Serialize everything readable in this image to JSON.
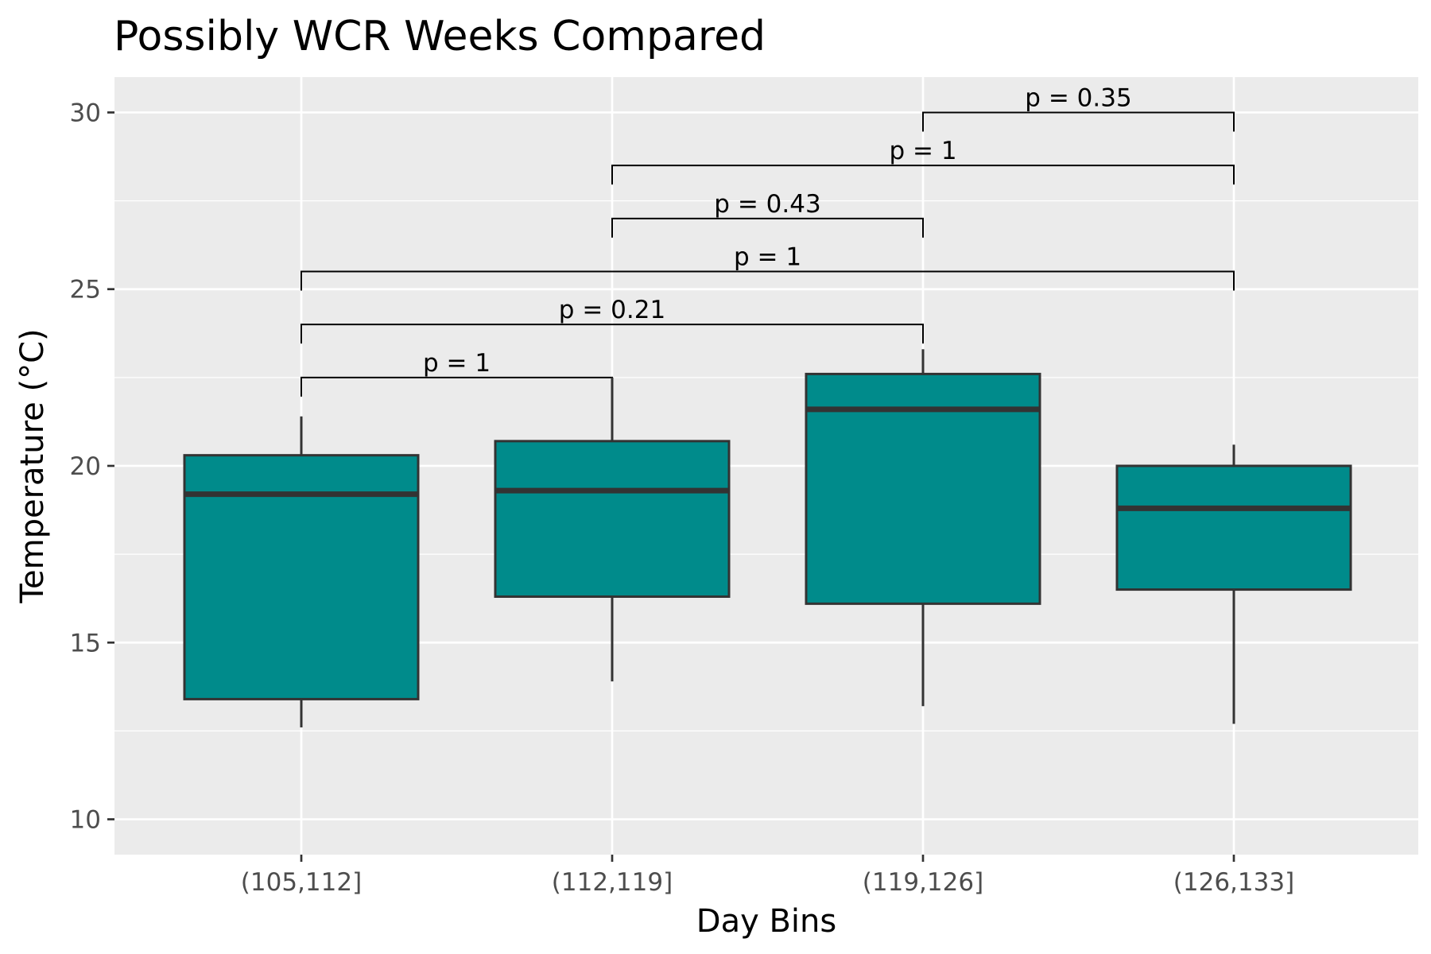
{
  "chart_data": {
    "type": "box",
    "title": "Possibly WCR Weeks Compared",
    "xlabel": "Day Bins",
    "ylabel": "Temperature (°C)",
    "categories": [
      "(105,112]",
      "(112,119]",
      "(119,126]",
      "(126,133]"
    ],
    "ylim": [
      9,
      31
    ],
    "yticks": [
      10,
      15,
      20,
      25,
      30
    ],
    "grid": true,
    "fill_color": "#008b8b",
    "panel_color": "#ebebeb",
    "boxes": [
      {
        "category": "(105,112]",
        "whisker_low": 12.6,
        "q1": 13.4,
        "median": 19.2,
        "q3": 20.3,
        "whisker_high": 21.4
      },
      {
        "category": "(112,119]",
        "whisker_low": 13.9,
        "q1": 16.3,
        "median": 19.3,
        "q3": 20.7,
        "whisker_high": 22.5
      },
      {
        "category": "(119,126]",
        "whisker_low": 13.2,
        "q1": 16.1,
        "median": 21.6,
        "q3": 22.6,
        "whisker_high": 23.3
      },
      {
        "category": "(126,133]",
        "whisker_low": 12.7,
        "q1": 16.5,
        "median": 18.8,
        "q3": 20.0,
        "whisker_high": 20.6
      }
    ],
    "comparisons": [
      {
        "from": "(105,112]",
        "to": "(112,119]",
        "y": 22.5,
        "label": "p = 1"
      },
      {
        "from": "(105,112]",
        "to": "(119,126]",
        "y": 24.0,
        "label": "p = 0.21"
      },
      {
        "from": "(105,112]",
        "to": "(126,133]",
        "y": 25.5,
        "label": "p = 1"
      },
      {
        "from": "(112,119]",
        "to": "(119,126]",
        "y": 27.0,
        "label": "p = 0.43"
      },
      {
        "from": "(112,119]",
        "to": "(126,133]",
        "y": 28.5,
        "label": "p = 1"
      },
      {
        "from": "(119,126]",
        "to": "(126,133]",
        "y": 30.0,
        "label": "p = 0.35"
      }
    ]
  }
}
